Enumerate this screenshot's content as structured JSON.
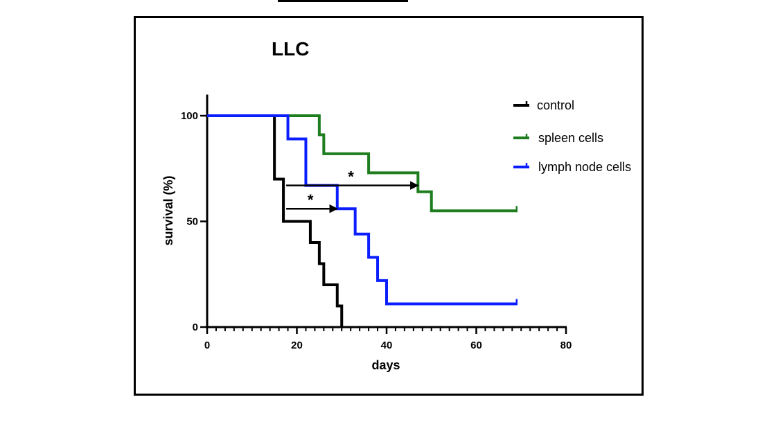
{
  "chart_data": {
    "type": "line",
    "subtype": "kaplan-meier step plot",
    "title": "LLC",
    "xlabel": "days",
    "ylabel": "survival (%)",
    "xlim": [
      0,
      80
    ],
    "ylim": [
      0,
      110
    ],
    "xticks_major": [
      0,
      20,
      40,
      60,
      80
    ],
    "xtick_labels": [
      "0",
      "20",
      "40",
      "60",
      "80"
    ],
    "xtick_minor_step": 2,
    "yticks": [
      0,
      50,
      100
    ],
    "ytick_labels": [
      "0",
      "50",
      "100"
    ],
    "grid": false,
    "legend_position": "top-right",
    "series": [
      {
        "name": "control",
        "color": "#000000",
        "points": [
          [
            0,
            100
          ],
          [
            15,
            100
          ],
          [
            15,
            70
          ],
          [
            17,
            70
          ],
          [
            17,
            50
          ],
          [
            23,
            50
          ],
          [
            23,
            40
          ],
          [
            25,
            40
          ],
          [
            25,
            30
          ],
          [
            26,
            30
          ],
          [
            26,
            20
          ],
          [
            29,
            20
          ],
          [
            29,
            10
          ],
          [
            30,
            10
          ],
          [
            30,
            0
          ]
        ],
        "censor": []
      },
      {
        "name": "spleen cells",
        "color": "#1e7d1e",
        "points": [
          [
            0,
            100
          ],
          [
            25,
            100
          ],
          [
            25,
            91
          ],
          [
            26,
            91
          ],
          [
            26,
            82
          ],
          [
            36,
            82
          ],
          [
            36,
            73
          ],
          [
            47,
            73
          ],
          [
            47,
            64
          ],
          [
            50,
            64
          ],
          [
            50,
            55
          ],
          [
            69,
            55
          ]
        ],
        "censor": [
          [
            69,
            55
          ]
        ]
      },
      {
        "name": "lymph node cells",
        "color": "#0a1eff",
        "points": [
          [
            0,
            100
          ],
          [
            18,
            100
          ],
          [
            18,
            89
          ],
          [
            22,
            89
          ],
          [
            22,
            67
          ],
          [
            29,
            67
          ],
          [
            29,
            56
          ],
          [
            33,
            56
          ],
          [
            33,
            44
          ],
          [
            36,
            44
          ],
          [
            36,
            33
          ],
          [
            38,
            33
          ],
          [
            38,
            22
          ],
          [
            40,
            22
          ],
          [
            40,
            11
          ],
          [
            69,
            11
          ]
        ],
        "censor": [
          [
            69,
            11
          ]
        ]
      }
    ],
    "annotations": [
      {
        "label": "*",
        "arrow_from": [
          17,
          67
        ],
        "arrow_to": [
          47,
          67
        ]
      },
      {
        "label": "*",
        "arrow_from": [
          17,
          56
        ],
        "arrow_to": [
          29,
          56
        ]
      }
    ]
  }
}
